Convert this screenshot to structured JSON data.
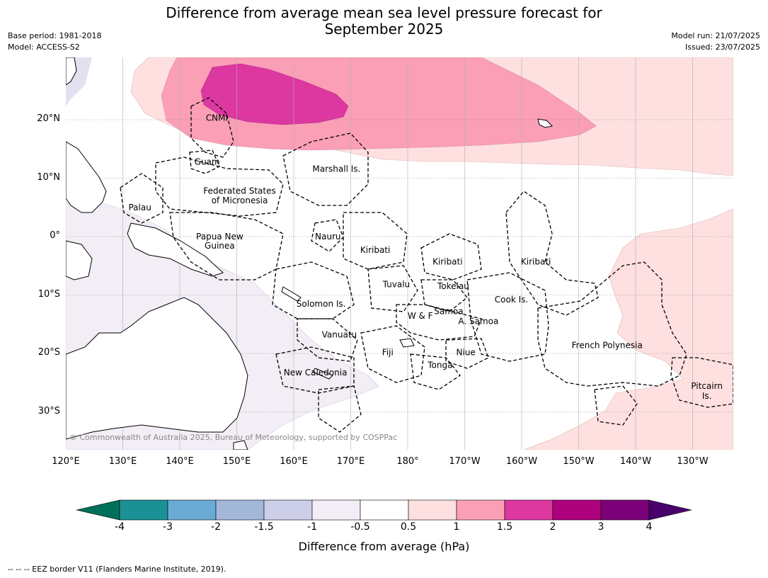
{
  "title_line1": "Difference from average mean sea level pressure forecast for",
  "title_line2": "September 2025",
  "meta_left": {
    "base_period": "Base period: 1981-2018",
    "model": "Model: ACCESS-S2"
  },
  "meta_right": {
    "model_run": "Model run: 21/07/2025",
    "issued": "Issued: 23/07/2025"
  },
  "lon_labels": [
    "120°E",
    "130°E",
    "140°E",
    "150°E",
    "160°E",
    "170°E",
    "180°",
    "170°W",
    "160°W",
    "150°W",
    "140°W",
    "130°W"
  ],
  "lat_labels": [
    "20°N",
    "10°N",
    "0°",
    "10°S",
    "20°S",
    "30°S"
  ],
  "regions": [
    {
      "name": "CNMI",
      "lon": 146.5,
      "lat": 20.3
    },
    {
      "name": "Guam",
      "lon": 144.8,
      "lat": 12.8
    },
    {
      "name": "Marshall Is.",
      "lon": 167.5,
      "lat": 11.6
    },
    {
      "name": "Federated States",
      "lon": 150.5,
      "lat": 7.8
    },
    {
      "name": "of Micronesia",
      "lon": 150.5,
      "lat": 6.2
    },
    {
      "name": "Palau",
      "lon": 133,
      "lat": 5
    },
    {
      "name": "Nauru",
      "lon": 166,
      "lat": 0
    },
    {
      "name": "Papua New",
      "lon": 147,
      "lat": 0
    },
    {
      "name": "Guinea",
      "lon": 147,
      "lat": -1.6
    },
    {
      "name": "Kiribati",
      "lon": 174.3,
      "lat": -2.3
    },
    {
      "name": "Kiribati",
      "lon": -173,
      "lat": -4.3
    },
    {
      "name": "Kiribati",
      "lon": -157.5,
      "lat": -4.3
    },
    {
      "name": "Tuvalu",
      "lon": 178,
      "lat": -8.2
    },
    {
      "name": "Tokelau",
      "lon": -172,
      "lat": -8.5
    },
    {
      "name": "Solomon Is.",
      "lon": 164.8,
      "lat": -11.5
    },
    {
      "name": "Cook Is.",
      "lon": -161.8,
      "lat": -10.8
    },
    {
      "name": "Samoa",
      "lon": -172.8,
      "lat": -12.8
    },
    {
      "name": "W & F",
      "lon": -177.8,
      "lat": -13.6
    },
    {
      "name": "A. Samoa",
      "lon": -167.6,
      "lat": -14.5
    },
    {
      "name": "Vanuatu",
      "lon": 168,
      "lat": -16.8
    },
    {
      "name": "French Polynesia",
      "lon": -145,
      "lat": -18.6
    },
    {
      "name": "Fiji",
      "lon": 176.5,
      "lat": -19.8
    },
    {
      "name": "Niue",
      "lon": -169.8,
      "lat": -19.8
    },
    {
      "name": "Tonga",
      "lon": -174.3,
      "lat": -22
    },
    {
      "name": "New Caledonia",
      "lon": 163.8,
      "lat": -23.3
    },
    {
      "name": "Pitcairn",
      "lon": -127.5,
      "lat": -25.6
    },
    {
      "name": "Is.",
      "lon": -127.5,
      "lat": -27.3
    }
  ],
  "colorbar": {
    "ticks": [
      "-4",
      "-3",
      "-2",
      "-1.5",
      "-1",
      "-0.5",
      "0.5",
      "1",
      "1.5",
      "2",
      "3",
      "4"
    ],
    "colors": [
      "#1b9195",
      "#69abd5",
      "#a3b7d9",
      "#cdcfe8",
      "#f3edf6",
      "#ffffff",
      "#fde0df",
      "#fa9fb6",
      "#dd37a0",
      "#ae027d",
      "#7a0177"
    ],
    "low_color": "#00705a",
    "high_color": "#49006a",
    "title": "Difference from average (hPa)"
  },
  "copyright": "© Commonwealth of Australia 2025, Bureau of Meteorology, supported by COSPPac",
  "footnote": "--  --  -- EEZ border V11 (Flanders Marine Institute, 2019)."
}
